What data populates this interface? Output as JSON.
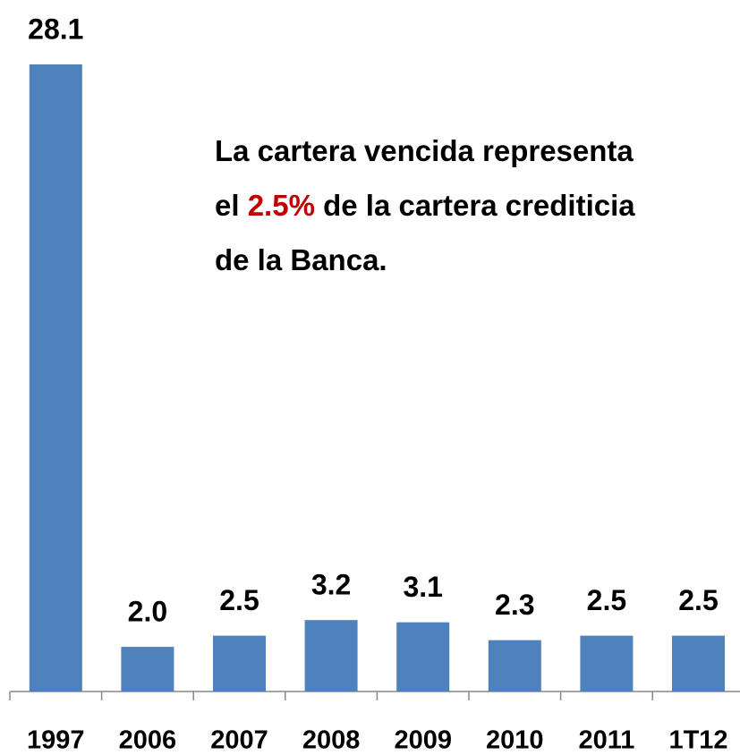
{
  "chart_data": {
    "type": "bar",
    "categories": [
      "1997",
      "2006",
      "2007",
      "2008",
      "2009",
      "2010",
      "2011",
      "1T12"
    ],
    "values": [
      28.1,
      2.0,
      2.5,
      3.2,
      3.1,
      2.3,
      2.5,
      2.5
    ],
    "value_labels": [
      "28.1",
      "2.0",
      "2.5",
      "3.2",
      "3.1",
      "2.3",
      "2.5",
      "2.5"
    ],
    "color": "#4f81bd",
    "annotation": [
      {
        "text": "La cartera vencida representa el "
      },
      {
        "text": "2.5%",
        "color": "#c00000"
      },
      {
        "text": " de la cartera crediticia de la Banca."
      }
    ]
  }
}
